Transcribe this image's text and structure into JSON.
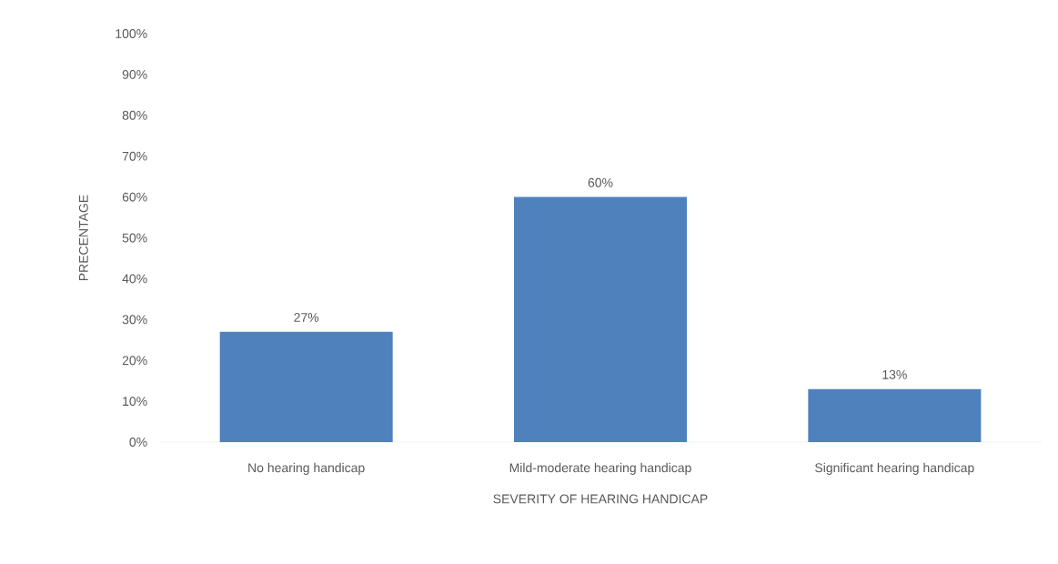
{
  "chart_data": {
    "type": "bar",
    "xlabel": "SEVERITY OF HEARING HANDICAP",
    "ylabel": "PRECENTAGE",
    "categories": [
      "No hearing handicap",
      "Mild-moderate hearing handicap",
      "Significant hearing handicap"
    ],
    "values": [
      27,
      60,
      13
    ],
    "value_labels": [
      "27%",
      "60%",
      "13%"
    ],
    "color": "#4f81bd",
    "ylim": [
      0,
      100
    ],
    "yticks": [
      {
        "value": 0,
        "label": "0%"
      },
      {
        "value": 10,
        "label": "10%"
      },
      {
        "value": 20,
        "label": "20%"
      },
      {
        "value": 30,
        "label": "30%"
      },
      {
        "value": 40,
        "label": "40%"
      },
      {
        "value": 50,
        "label": "50%"
      },
      {
        "value": 60,
        "label": "60%"
      },
      {
        "value": 70,
        "label": "70%"
      },
      {
        "value": 80,
        "label": "80%"
      },
      {
        "value": 90,
        "label": "90%"
      },
      {
        "value": 100,
        "label": "100%"
      }
    ]
  }
}
